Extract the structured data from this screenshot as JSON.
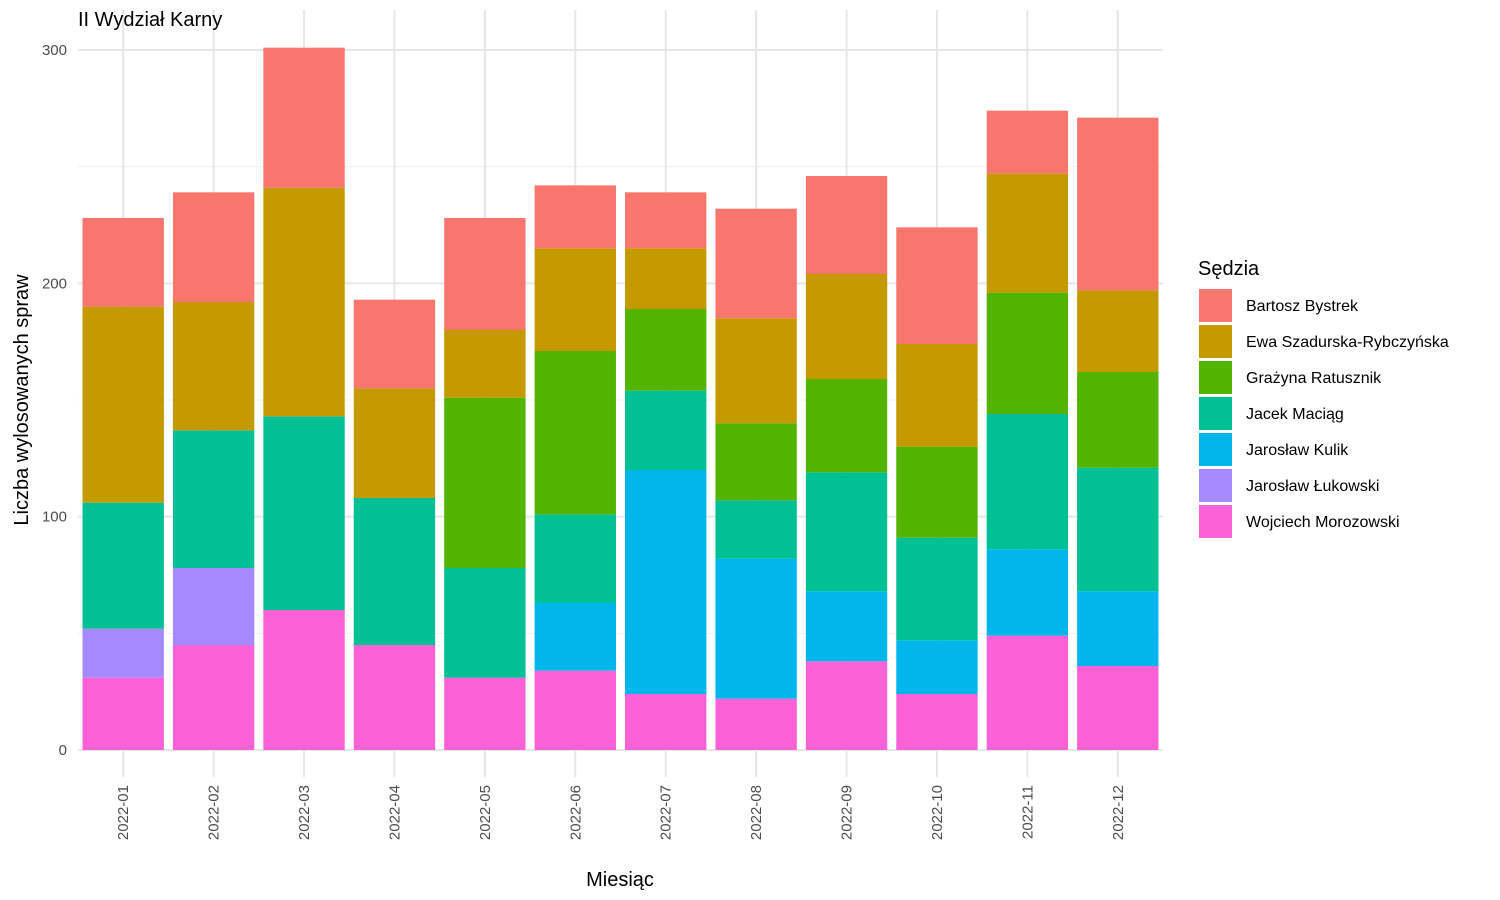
{
  "chart_data": {
    "type": "bar",
    "stacked": true,
    "title": "II Wydział Karny",
    "xlabel": "Miesiąc",
    "ylabel": "Liczba wylosowanych spraw",
    "ylim": [
      0,
      300
    ],
    "yticks": [
      0,
      100,
      200,
      300
    ],
    "grid": true,
    "legend_title": "Sędzia",
    "legend_position": "right",
    "categories": [
      "2022-01",
      "2022-02",
      "2022-03",
      "2022-04",
      "2022-05",
      "2022-06",
      "2022-07",
      "2022-08",
      "2022-09",
      "2022-10",
      "2022-11",
      "2022-12"
    ],
    "series": [
      {
        "name": "Wojciech Morozowski",
        "color": "#FB61D7",
        "values": [
          31,
          45,
          60,
          45,
          31,
          34,
          24,
          22,
          38,
          24,
          49,
          36
        ]
      },
      {
        "name": "Jarosław Łukowski",
        "color": "#A58AFF",
        "values": [
          21,
          33,
          0,
          0,
          0,
          0,
          0,
          0,
          0,
          0,
          0,
          0
        ]
      },
      {
        "name": "Jarosław Kulik",
        "color": "#00B6EB",
        "values": [
          0,
          0,
          0,
          0,
          0,
          29,
          96,
          60,
          30,
          23,
          37,
          32
        ]
      },
      {
        "name": "Jacek Maciąg",
        "color": "#00C094",
        "values": [
          54,
          59,
          83,
          63,
          47,
          38,
          34,
          25,
          51,
          44,
          58,
          53
        ]
      },
      {
        "name": "Grażyna Ratusznik",
        "color": "#53B400",
        "values": [
          0,
          0,
          0,
          0,
          73,
          70,
          35,
          33,
          40,
          39,
          52,
          41
        ]
      },
      {
        "name": "Ewa Szadurska-Rybczyńska",
        "color": "#C49A00",
        "values": [
          84,
          55,
          98,
          47,
          29,
          44,
          26,
          45,
          45,
          44,
          51,
          35
        ]
      },
      {
        "name": "Bartosz Bystrek",
        "color": "#F8766D",
        "values": [
          38,
          47,
          60,
          38,
          48,
          27,
          24,
          47,
          42,
          50,
          27,
          74
        ]
      }
    ],
    "legend_order": [
      "Bartosz Bystrek",
      "Ewa Szadurska-Rybczyńska",
      "Grażyna Ratusznik",
      "Jacek Maciąg",
      "Jarosław Kulik",
      "Jarosław Łukowski",
      "Wojciech Morozowski"
    ]
  }
}
